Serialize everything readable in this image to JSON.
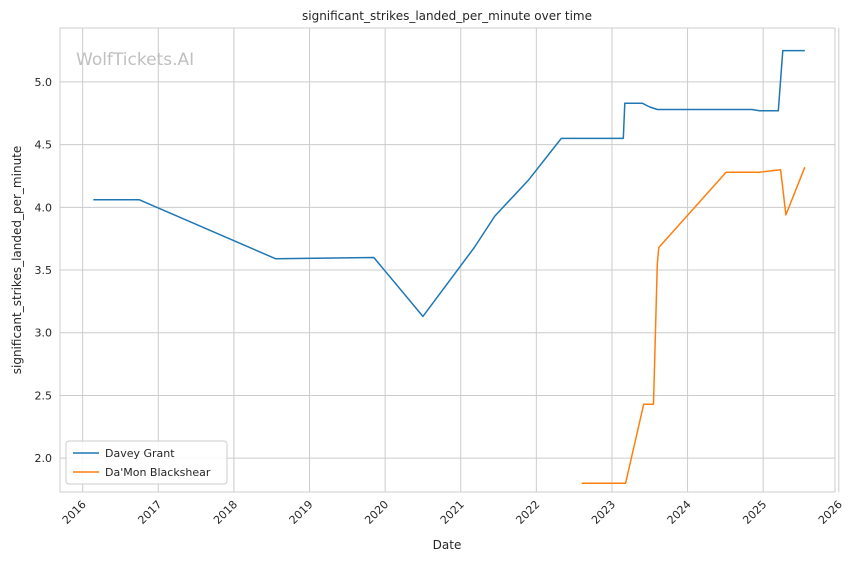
{
  "chart_data": {
    "type": "line",
    "title": "significant_strikes_landed_per_minute over time",
    "xlabel": "Date",
    "ylabel": "significant_strikes_landed_per_minute",
    "watermark": "WolfTickets.AI",
    "xlim": [
      2015.7,
      2025.95
    ],
    "ylim": [
      1.73,
      5.43
    ],
    "x_ticks": [
      2016,
      2017,
      2018,
      2019,
      2020,
      2021,
      2022,
      2023,
      2024,
      2025,
      2026
    ],
    "x_tick_labels": [
      "2016",
      "2017",
      "2018",
      "2019",
      "2020",
      "2021",
      "2022",
      "2023",
      "2024",
      "2025",
      "2026"
    ],
    "y_ticks": [
      2.0,
      2.5,
      3.0,
      3.5,
      4.0,
      4.5,
      5.0
    ],
    "y_tick_labels": [
      "2.0",
      "2.5",
      "3.0",
      "3.5",
      "4.0",
      "4.5",
      "5.0"
    ],
    "grid": true,
    "legend_position": "lower-left",
    "series": [
      {
        "name": "Davey Grant",
        "color": "#1f77b4",
        "x": [
          2016.14,
          2016.75,
          2018.55,
          2019.85,
          2020.5,
          2021.18,
          2021.45,
          2021.9,
          2022.33,
          2023.15,
          2023.17,
          2023.4,
          2023.5,
          2023.6,
          2024.85,
          2024.95,
          2025.2,
          2025.26,
          2025.55
        ],
        "values": [
          4.06,
          4.06,
          3.59,
          3.6,
          3.13,
          3.68,
          3.93,
          4.22,
          4.55,
          4.55,
          4.83,
          4.83,
          4.8,
          4.78,
          4.78,
          4.77,
          4.77,
          5.25,
          5.25
        ]
      },
      {
        "name": "Da'Mon Blackshear",
        "color": "#ff7f0e",
        "x": [
          2022.6,
          2023.18,
          2023.42,
          2023.55,
          2023.6,
          2023.62,
          2024.51,
          2024.95,
          2025.23,
          2025.3,
          2025.55
        ],
        "values": [
          1.8,
          1.8,
          2.43,
          2.43,
          3.55,
          3.68,
          4.28,
          4.28,
          4.3,
          3.94,
          4.32
        ]
      }
    ]
  }
}
